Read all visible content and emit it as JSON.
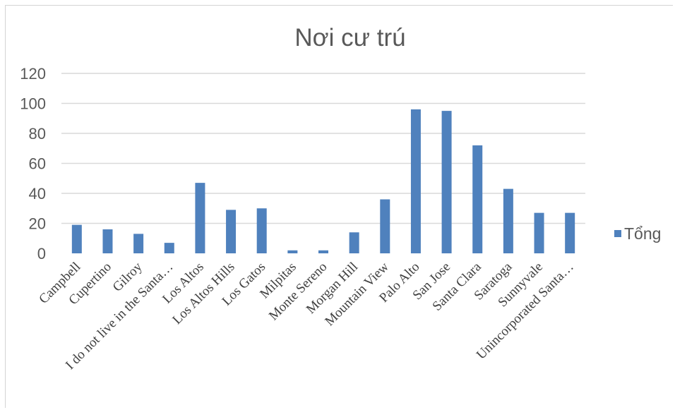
{
  "chart_data": {
    "type": "bar",
    "title": "Nơi cư trú",
    "categories": [
      "Campbell",
      "Cupertino",
      "Gilroy",
      "I do not live in the Santa…",
      "Los Altos",
      "Los Altos Hills",
      "Los Gatos",
      "Milpitas",
      "Monte Sereno",
      "Morgan Hill",
      "Mountain View",
      "Palo Alto",
      "San Jose",
      "Santa Clara",
      "Saratoga",
      "Sunnyvale",
      "Unincorporated Santa…"
    ],
    "series": [
      {
        "name": "Tổng",
        "values": [
          19,
          16,
          13,
          7,
          47,
          29,
          30,
          2,
          2,
          14,
          36,
          96,
          95,
          72,
          43,
          27,
          27
        ]
      }
    ],
    "ylim": [
      0,
      120
    ],
    "yticks": [
      "0",
      "20",
      "40",
      "60",
      "80",
      "100",
      "120"
    ],
    "grid": true,
    "legend_position": "right",
    "colors": {
      "bar": "#4f81bd",
      "grid": "#d9d9d9",
      "text": "#595959"
    }
  }
}
